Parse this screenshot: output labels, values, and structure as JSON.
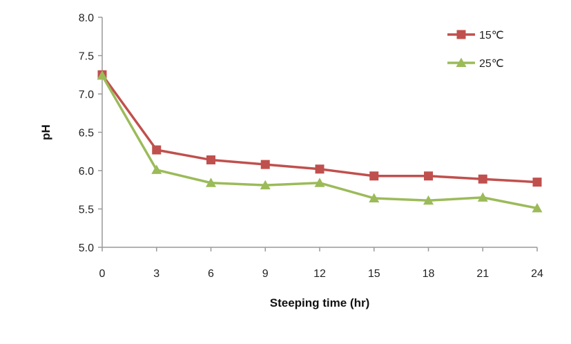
{
  "chart_data": {
    "type": "line",
    "xlabel": "Steeping time (hr)",
    "ylabel": "pH",
    "x": [
      0,
      3,
      6,
      9,
      12,
      15,
      18,
      21,
      24
    ],
    "x_tick_labels": [
      "0",
      "3",
      "6",
      "9",
      "12",
      "15",
      "18",
      "21",
      "24"
    ],
    "ylim": [
      5.0,
      8.0
    ],
    "y_tick_labels": [
      "5.0",
      "5.5",
      "6.0",
      "6.5",
      "7.0",
      "7.5",
      "8.0"
    ],
    "y_ticks": [
      5.0,
      5.5,
      6.0,
      6.5,
      7.0,
      7.5,
      8.0
    ],
    "grid": false,
    "legend_position": "top-right",
    "series": [
      {
        "name": "15℃",
        "color": "#c0504d",
        "marker": "square",
        "values": [
          7.25,
          6.27,
          6.14,
          6.08,
          6.02,
          5.93,
          5.93,
          5.89,
          5.85
        ]
      },
      {
        "name": "25℃",
        "color": "#9bbb59",
        "marker": "triangle",
        "values": [
          7.24,
          6.01,
          5.84,
          5.81,
          5.84,
          5.64,
          5.61,
          5.65,
          5.51
        ]
      }
    ]
  }
}
